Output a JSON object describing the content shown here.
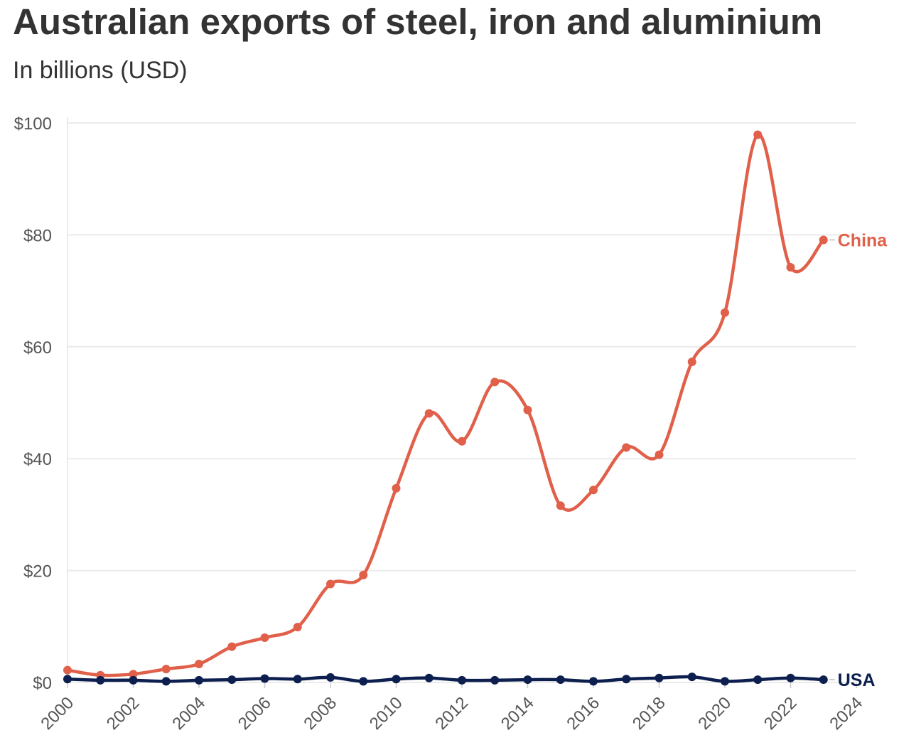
{
  "title": "Australian exports of steel, iron and aluminium",
  "subtitle": "In billions (USD)",
  "colors": {
    "china": "#e0604a",
    "usa": "#0d1f4f",
    "grid": "#ebebeb",
    "text": "#333333",
    "tick": "#555555"
  },
  "chart_data": {
    "type": "line",
    "title": "Australian exports of steel, iron and aluminium",
    "subtitle": "In billions (USD)",
    "xlabel": "",
    "ylabel": "",
    "x": [
      2000,
      2001,
      2002,
      2003,
      2004,
      2005,
      2006,
      2007,
      2008,
      2009,
      2010,
      2011,
      2012,
      2013,
      2014,
      2015,
      2016,
      2017,
      2018,
      2019,
      2020,
      2021,
      2022,
      2023
    ],
    "xlim": [
      2000,
      2024
    ],
    "ylim": [
      0,
      100
    ],
    "x_ticks": [
      2000,
      2002,
      2004,
      2006,
      2008,
      2010,
      2012,
      2014,
      2016,
      2018,
      2020,
      2022,
      2024
    ],
    "x_tick_labels": [
      "2000",
      "2002",
      "2004",
      "2006",
      "2008",
      "2010",
      "2012",
      "2014",
      "2016",
      "2018",
      "2020",
      "2022",
      "2024"
    ],
    "y_ticks": [
      0,
      20,
      40,
      60,
      80,
      100
    ],
    "y_tick_labels": [
      "$0",
      "$20",
      "$40",
      "$60",
      "$80",
      "$100"
    ],
    "grid": true,
    "legend": "direct labels at right end of lines",
    "series": [
      {
        "name": "China",
        "color_key": "china",
        "values": [
          2.2,
          1.3,
          1.5,
          2.4,
          3.3,
          6.4,
          8.0,
          9.9,
          17.6,
          19.2,
          34.7,
          48.1,
          43.1,
          53.7,
          48.7,
          31.6,
          34.4,
          42.0,
          40.7,
          57.3,
          66.1,
          97.9,
          74.2,
          79.1
        ]
      },
      {
        "name": "USA",
        "color_key": "usa",
        "values": [
          0.6,
          0.4,
          0.4,
          0.2,
          0.4,
          0.5,
          0.7,
          0.6,
          0.9,
          0.2,
          0.6,
          0.8,
          0.4,
          0.4,
          0.5,
          0.5,
          0.2,
          0.6,
          0.8,
          1.0,
          0.2,
          0.5,
          0.8,
          0.5
        ]
      }
    ]
  }
}
